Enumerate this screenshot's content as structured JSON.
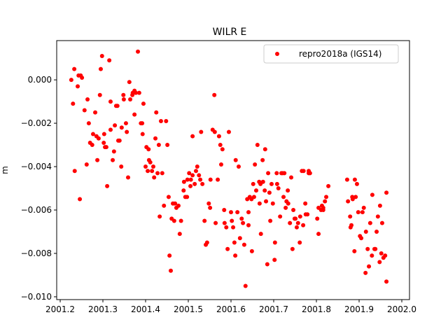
{
  "chart_data": {
    "type": "scatter",
    "title": "WILR E",
    "xlabel": "",
    "ylabel": "m",
    "xlim": [
      2001.1918,
      2002.018
    ],
    "ylim": [
      -0.01013,
      0.00181
    ],
    "xticks": [
      2001.2,
      2001.3,
      2001.4,
      2001.5,
      2001.6,
      2001.7,
      2001.8,
      2001.9,
      2002.0
    ],
    "xtick_labels": [
      "2001.2",
      "2001.3",
      "2001.4",
      "2001.5",
      "2001.6",
      "2001.7",
      "2001.8",
      "2001.9",
      "2002.0"
    ],
    "yticks": [
      0.0,
      -0.002,
      -0.004,
      -0.006,
      -0.008,
      -0.01
    ],
    "ytick_labels": [
      "0.000",
      "−0.002",
      "−0.004",
      "−0.006",
      "−0.008",
      "−0.010"
    ],
    "grid": false,
    "legend_position": "top-right",
    "series": [
      {
        "name": "repro2018a (IGS14)",
        "color": "#ff0000",
        "marker": "circle",
        "x": [
          2001.226,
          2001.23,
          2001.233,
          2001.234,
          2001.241,
          2001.243,
          2001.248,
          2001.251,
          2001.246,
          2001.257,
          2001.262,
          2001.264,
          2001.267,
          2001.27,
          2001.275,
          2001.277,
          2001.282,
          2001.285,
          2001.287,
          2001.29,
          2001.293,
          2001.295,
          2001.298,
          2001.302,
          2001.303,
          2001.305,
          2001.308,
          2001.31,
          2001.315,
          2001.318,
          2001.318,
          2001.323,
          2001.326,
          2001.328,
          2001.331,
          2001.334,
          2001.336,
          2001.339,
          2001.343,
          2001.344,
          2001.348,
          2001.349,
          2001.354,
          2001.356,
          2001.359,
          2001.362,
          2001.364,
          2001.369,
          2001.37,
          2001.374,
          2001.374,
          2001.377,
          2001.382,
          2001.385,
          2001.389,
          2001.392,
          2001.393,
          2001.395,
          2001.4,
          2001.402,
          2001.405,
          2001.407,
          2001.408,
          2001.411,
          2001.415,
          2001.418,
          2001.42,
          2001.423,
          2001.425,
          2001.428,
          2001.431,
          2001.433,
          2001.436,
          2001.439,
          2001.443,
          2001.448,
          2001.451,
          2001.454,
          2001.456,
          2001.459,
          2001.461,
          2001.464,
          2001.467,
          2001.469,
          2001.472,
          2001.477,
          2001.48,
          2001.483,
          2001.489,
          2001.49,
          2001.493,
          2001.497,
          2001.498,
          2001.502,
          2001.505,
          2001.506,
          2001.51,
          2001.51,
          2001.515,
          2001.518,
          2001.521,
          2001.525,
          2001.528,
          2001.53,
          2001.533,
          2001.538,
          2001.541,
          2001.544,
          2001.548,
          2001.551,
          2001.552,
          2001.557,
          2001.561,
          2001.562,
          2001.564,
          2001.569,
          2001.572,
          2001.575,
          2001.577,
          2001.58,
          2001.584,
          2001.585,
          2001.589,
          2001.592,
          2001.595,
          2001.6,
          2001.602,
          2001.605,
          2001.608,
          2001.61,
          2001.611,
          2001.615,
          2001.618,
          2001.621,
          2001.625,
          2001.628,
          2001.631,
          2001.634,
          2001.638,
          2001.641,
          2001.641,
          2001.644,
          2001.648,
          2001.649,
          2001.652,
          2001.654,
          2001.656,
          2001.659,
          2001.662,
          2001.666,
          2001.667,
          2001.669,
          2001.67,
          2001.674,
          2001.675,
          2001.679,
          2001.68,
          2001.682,
          2001.685,
          2001.687,
          2001.69,
          2001.692,
          2001.695,
          2001.698,
          2001.702,
          2001.703,
          2001.707,
          2001.708,
          2001.711,
          2001.715,
          2001.718,
          2001.721,
          2001.723,
          2001.725,
          2001.728,
          2001.73,
          2001.733,
          2001.734,
          2001.738,
          2001.741,
          2001.744,
          2001.746,
          2001.749,
          2001.751,
          2001.754,
          2001.757,
          2001.761,
          2001.762,
          2001.766,
          2001.769,
          2001.77,
          2001.774,
          2001.775,
          2001.779,
          2001.782,
          2001.782,
          2001.785,
          2001.802,
          2001.805,
          2001.805,
          2001.811,
          2001.813,
          2001.816,
          2001.816,
          2001.82,
          2001.823,
          2001.828,
          2001.872,
          2001.874,
          2001.879,
          2001.88,
          2001.882,
          2001.884,
          2001.885,
          2001.889,
          2001.89,
          2001.892,
          2001.895,
          2001.898,
          2001.902,
          2001.905,
          2001.908,
          2001.911,
          2001.915,
          2001.916,
          2001.92,
          2001.923,
          2001.926,
          2001.93,
          2001.931,
          2001.936,
          2001.938,
          2001.941,
          2001.944,
          2001.948,
          2001.949,
          2001.952,
          2001.954,
          2001.957,
          2001.961,
          2001.964,
          2001.964
        ],
        "y": [
          0.0,
          -0.0011,
          0.0005,
          -0.0042,
          -0.0003,
          0.0002,
          0.0002,
          0.0001,
          -0.0055,
          -0.0014,
          -0.0039,
          -0.0009,
          -0.002,
          -0.0029,
          -0.003,
          -0.0025,
          -0.0015,
          -0.0026,
          -0.0037,
          -0.0027,
          -0.0007,
          0.0005,
          0.0011,
          -0.0029,
          -0.0025,
          -0.0031,
          -0.0031,
          -0.0049,
          0.0009,
          -0.001,
          -0.0023,
          -0.0037,
          -0.0033,
          -0.0021,
          -0.0012,
          -0.0012,
          -0.0028,
          -0.0028,
          -0.004,
          -0.0022,
          -0.0007,
          -0.0009,
          -0.002,
          -0.0024,
          -0.0045,
          -0.0001,
          -0.0009,
          -0.0007,
          -0.0006,
          -0.0005,
          -0.0016,
          -0.0006,
          0.0013,
          -0.0006,
          -0.002,
          -0.002,
          -0.0025,
          -0.0011,
          -0.004,
          -0.0031,
          -0.0042,
          -0.0032,
          -0.0037,
          -0.0038,
          -0.0042,
          -0.004,
          -0.0045,
          -0.0027,
          -0.0015,
          -0.0043,
          -0.003,
          -0.0063,
          -0.0019,
          -0.0043,
          -0.0058,
          -0.0019,
          -0.003,
          -0.0054,
          -0.0081,
          -0.0088,
          -0.0064,
          -0.0057,
          -0.0065,
          -0.0057,
          -0.0059,
          -0.0058,
          -0.0071,
          -0.0065,
          -0.0051,
          -0.0047,
          -0.0054,
          -0.0054,
          -0.0046,
          -0.0043,
          -0.0049,
          -0.0046,
          -0.0026,
          -0.0044,
          -0.0048,
          -0.0042,
          -0.004,
          -0.0044,
          -0.0046,
          -0.0024,
          -0.0048,
          -0.0065,
          -0.0076,
          -0.0075,
          -0.0057,
          -0.0059,
          -0.0046,
          -0.0023,
          -0.0007,
          -0.0024,
          -0.0066,
          -0.0046,
          -0.0026,
          -0.003,
          -0.0039,
          -0.0032,
          -0.006,
          -0.0066,
          -0.0068,
          -0.0078,
          -0.0024,
          -0.0061,
          -0.0065,
          -0.0068,
          -0.0075,
          -0.0081,
          -0.0037,
          -0.0061,
          -0.004,
          -0.0073,
          -0.0064,
          -0.0066,
          -0.0076,
          -0.0095,
          -0.0055,
          -0.0061,
          -0.0067,
          -0.0054,
          -0.0055,
          -0.0079,
          -0.0048,
          -0.0054,
          -0.0039,
          -0.0051,
          -0.003,
          -0.0047,
          -0.0057,
          -0.0048,
          -0.0071,
          -0.0037,
          -0.0047,
          -0.0051,
          -0.0032,
          -0.0056,
          -0.0085,
          -0.0043,
          -0.0052,
          -0.0065,
          -0.0048,
          -0.0057,
          -0.0083,
          -0.0075,
          -0.0043,
          -0.0048,
          -0.005,
          -0.0063,
          -0.0043,
          -0.0043,
          -0.0054,
          -0.0043,
          -0.0059,
          -0.0056,
          -0.0051,
          -0.0057,
          -0.0066,
          -0.0045,
          -0.0078,
          -0.006,
          -0.0064,
          -0.0064,
          -0.0068,
          -0.0066,
          -0.0075,
          -0.0063,
          -0.0042,
          -0.0067,
          -0.0042,
          -0.0057,
          -0.0062,
          -0.0062,
          -0.0042,
          -0.0043,
          -0.0043,
          -0.0064,
          -0.0059,
          -0.0071,
          -0.006,
          -0.0058,
          -0.0059,
          -0.006,
          -0.0056,
          -0.0054,
          -0.0049,
          -0.0046,
          -0.0056,
          -0.0063,
          -0.0068,
          -0.0067,
          -0.0054,
          -0.0055,
          -0.0079,
          -0.0046,
          -0.0054,
          -0.0048,
          -0.0061,
          -0.0072,
          -0.0073,
          -0.0061,
          -0.0059,
          -0.0089,
          -0.007,
          -0.0078,
          -0.0086,
          -0.0066,
          -0.0081,
          -0.0053,
          -0.0078,
          -0.0078,
          -0.007,
          -0.0063,
          -0.0084,
          -0.0058,
          -0.008,
          -0.0066,
          -0.0082,
          -0.0081,
          -0.0052,
          -0.0093
        ]
      }
    ]
  }
}
